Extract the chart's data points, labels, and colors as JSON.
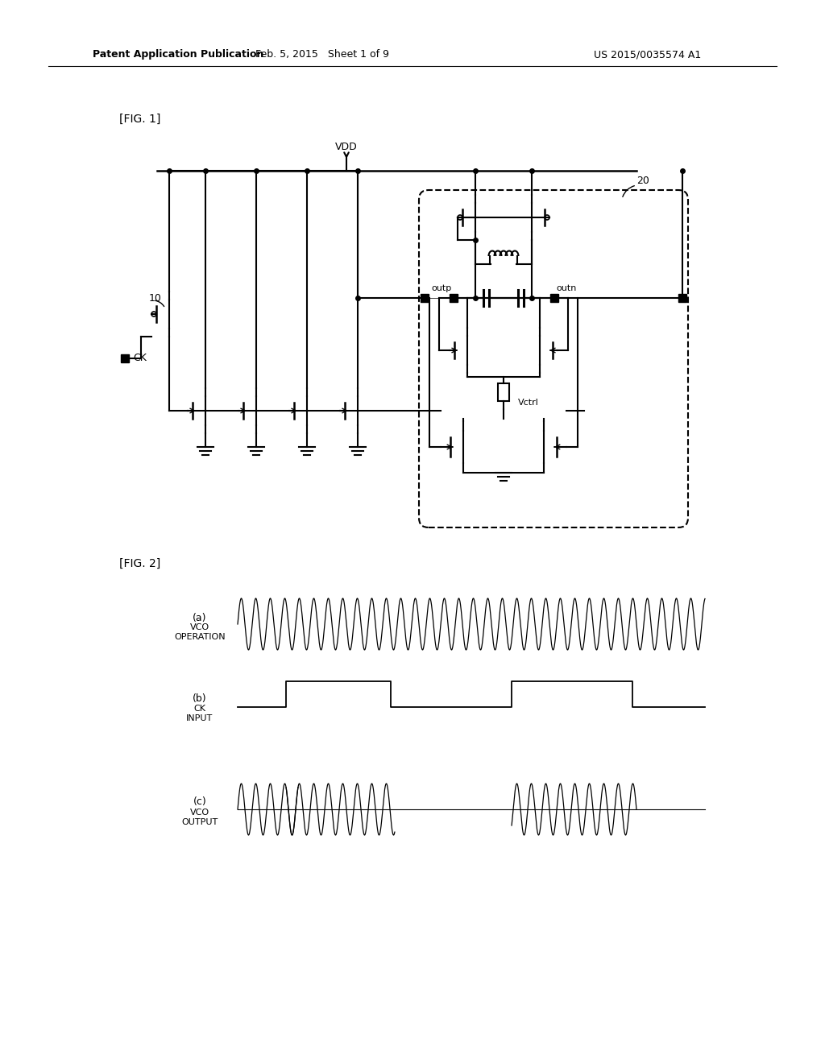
{
  "bg_color": "#ffffff",
  "header_left": "Patent Application Publication",
  "header_mid": "Feb. 5, 2015   Sheet 1 of 9",
  "header_right": "US 2015/0035574 A1",
  "fig1_label": "[FIG. 1]",
  "fig2_label": "[FIG. 2]",
  "vdd_label": "VDD",
  "ck_label": "CK",
  "label_10": "10",
  "label_20": "20",
  "outp_label": "outp",
  "outn_label": "outn",
  "vctrl_label": "Vctrl",
  "sub_a": "(a)",
  "sub_b": "(b)",
  "sub_c": "(c)",
  "vco_op_label": "VCO\nOPERATION",
  "ck_input_label": "CK\nINPUT",
  "vco_out_label": "VCO\nOUTPUT"
}
